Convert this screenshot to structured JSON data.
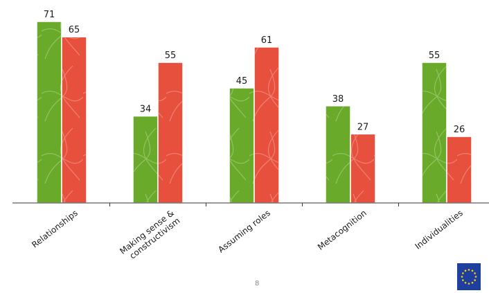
{
  "chart_data": {
    "type": "bar",
    "categories": [
      [
        "Relationships"
      ],
      [
        "Making sense  &",
        "constructivism"
      ],
      [
        "Assuming roles"
      ],
      [
        "Metacognition"
      ],
      [
        "Individualities"
      ]
    ],
    "series": [
      {
        "values": [
          71,
          34,
          45,
          38,
          55
        ],
        "color": "#6aaa2a"
      },
      {
        "values": [
          65,
          55,
          61,
          27,
          26
        ],
        "color": "#e8503e"
      }
    ],
    "ylim": [
      0,
      75
    ],
    "grid": false,
    "legend": "none"
  },
  "footer": {
    "page_number": "8",
    "logo": "eu-flag-icon"
  }
}
